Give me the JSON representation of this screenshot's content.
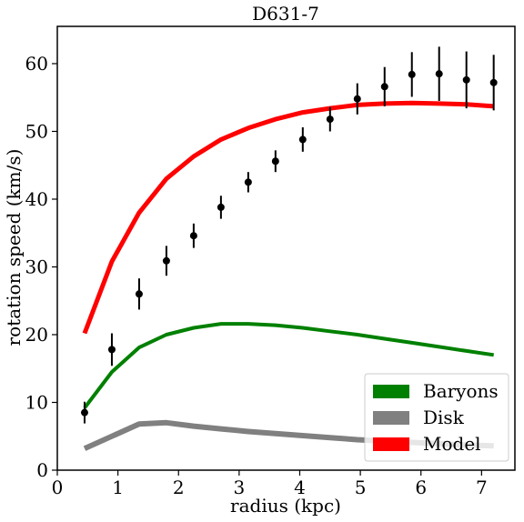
{
  "chart_data": {
    "type": "line",
    "title": "D631-7",
    "xlabel": "radius (kpc)",
    "ylabel": "rotation speed (km/s)",
    "xlim": [
      0,
      7.55
    ],
    "ylim": [
      0,
      65.5
    ],
    "xticks": [
      0,
      1,
      2,
      3,
      4,
      5,
      6,
      7
    ],
    "yticks": [
      0,
      10,
      20,
      30,
      40,
      50,
      60
    ],
    "grid": false,
    "legend_position": "lower-right",
    "series": [
      {
        "name": "Baryons",
        "color": "#008000",
        "style": "line",
        "x": [
          0.45,
          0.9,
          1.35,
          1.8,
          2.25,
          2.7,
          3.15,
          3.6,
          4.05,
          4.5,
          4.95,
          5.4,
          5.85,
          6.3,
          6.75,
          7.2
        ],
        "y": [
          9.2,
          14.5,
          18.1,
          20.0,
          21.0,
          21.6,
          21.6,
          21.4,
          21.0,
          20.5,
          20.0,
          19.4,
          18.8,
          18.2,
          17.6,
          17.0
        ]
      },
      {
        "name": "Disk",
        "color": "#808080",
        "style": "line",
        "x": [
          0.45,
          0.9,
          1.35,
          1.8,
          2.25,
          2.7,
          3.15,
          3.6,
          4.05,
          4.5,
          4.95,
          5.4,
          5.85,
          6.3,
          6.75,
          7.2
        ],
        "y": [
          3.2,
          5.0,
          6.8,
          7.0,
          6.5,
          6.1,
          5.7,
          5.4,
          5.1,
          4.8,
          4.5,
          4.3,
          4.1,
          3.9,
          3.7,
          3.6
        ]
      },
      {
        "name": "Model",
        "color": "#ff0000",
        "style": "line",
        "x": [
          0.45,
          0.9,
          1.35,
          1.8,
          2.25,
          2.7,
          3.15,
          3.6,
          4.05,
          4.5,
          4.95,
          5.4,
          5.85,
          6.3,
          6.75,
          7.2
        ],
        "y": [
          20.2,
          30.8,
          38.0,
          43.0,
          46.3,
          48.8,
          50.5,
          51.8,
          52.8,
          53.4,
          53.9,
          54.1,
          54.2,
          54.1,
          54.0,
          53.7
        ]
      },
      {
        "name": "",
        "color": "#000000",
        "style": "errorbar",
        "x": [
          0.45,
          0.9,
          1.35,
          1.8,
          2.25,
          2.7,
          3.15,
          3.6,
          4.05,
          4.5,
          4.95,
          5.4,
          5.85,
          6.3,
          6.75,
          7.2
        ],
        "y": [
          8.5,
          17.8,
          26.0,
          30.9,
          34.6,
          38.8,
          42.5,
          45.6,
          48.8,
          51.8,
          54.8,
          56.6,
          58.4,
          58.5,
          57.6,
          57.2
        ],
        "yerr": [
          1.6,
          2.4,
          2.3,
          2.2,
          1.8,
          1.7,
          1.5,
          1.6,
          1.8,
          1.8,
          2.3,
          2.9,
          3.3,
          4.0,
          4.2,
          4.1
        ]
      }
    ],
    "legend": [
      {
        "label": "Baryons",
        "color": "#008000"
      },
      {
        "label": "Disk",
        "color": "#808080"
      },
      {
        "label": "Model",
        "color": "#ff0000"
      }
    ]
  }
}
